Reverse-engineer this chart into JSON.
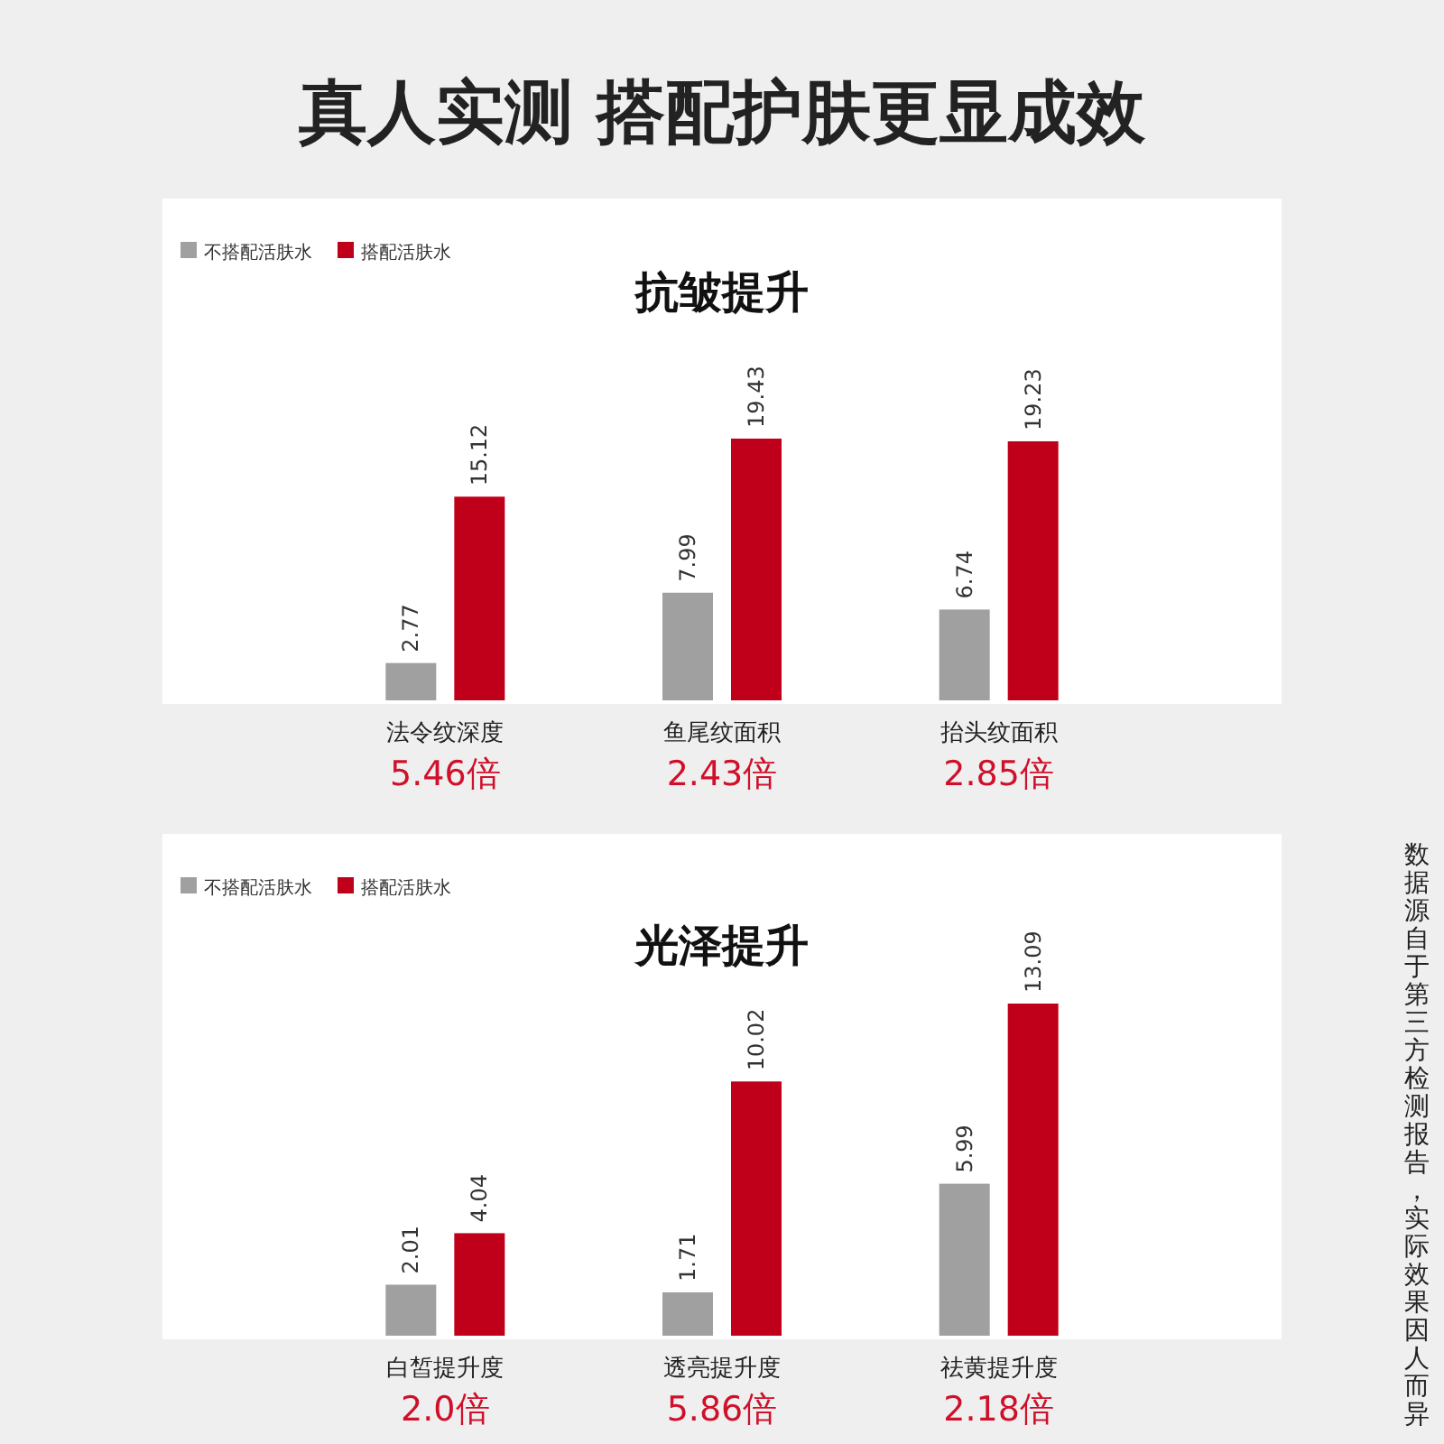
{
  "chart_data": [
    {
      "type": "bar",
      "title": "真人实测 搭配护肤更显成效",
      "subtitle": "抗皱提升",
      "categories": [
        "法令纹深度",
        "鱼尾纹面积",
        "抬头纹面积"
      ],
      "series": [
        {
          "name": "不搭配活肤水",
          "color": "#a0a0a0",
          "values": [
            2.77,
            7.99,
            6.74
          ]
        },
        {
          "name": "搭配活肤水",
          "color": "#c0001a",
          "values": [
            15.12,
            19.43,
            19.23
          ]
        }
      ],
      "data_labels": true,
      "legend": "top left",
      "annotations": [
        "5.46倍",
        "2.43倍",
        "2.85倍"
      ]
    },
    {
      "type": "bar",
      "title": "光泽提升",
      "categories": [
        "白皙提升度",
        "透亮提升度",
        "祛黄提升度"
      ],
      "series": [
        {
          "name": "不搭配活肤水",
          "color": "#a0a0a0",
          "values": [
            2.01,
            1.71,
            5.99
          ]
        },
        {
          "name": "搭配活肤水",
          "color": "#c0001a",
          "values": [
            4.04,
            10.02,
            13.09
          ]
        }
      ],
      "data_labels": true,
      "legend": "top left",
      "annotations": [
        "2.0倍",
        "5.86倍",
        "2.18倍",
        "数据源自于第三方检测报告，实际效果因人而异"
      ]
    }
  ]
}
